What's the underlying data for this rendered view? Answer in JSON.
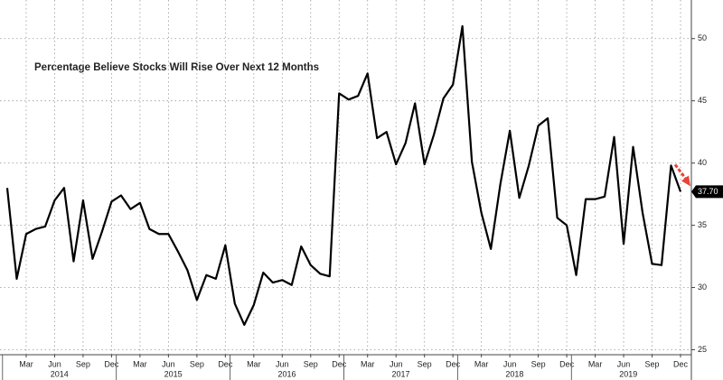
{
  "chart_data": {
    "type": "line",
    "annotation": "Percentage Believe Stocks Will Rise Over Next 12 Months",
    "x": [
      "2014-01",
      "2014-02",
      "2014-03",
      "2014-04",
      "2014-05",
      "2014-06",
      "2014-07",
      "2014-08",
      "2014-09",
      "2014-10",
      "2014-11",
      "2014-12",
      "2015-01",
      "2015-02",
      "2015-03",
      "2015-04",
      "2015-05",
      "2015-06",
      "2015-07",
      "2015-08",
      "2015-09",
      "2015-10",
      "2015-11",
      "2015-12",
      "2016-01",
      "2016-02",
      "2016-03",
      "2016-04",
      "2016-05",
      "2016-06",
      "2016-07",
      "2016-08",
      "2016-09",
      "2016-10",
      "2016-11",
      "2016-12",
      "2017-01",
      "2017-02",
      "2017-03",
      "2017-04",
      "2017-05",
      "2017-06",
      "2017-07",
      "2017-08",
      "2017-09",
      "2017-10",
      "2017-11",
      "2017-12",
      "2018-01",
      "2018-02",
      "2018-03",
      "2018-04",
      "2018-05",
      "2018-06",
      "2018-07",
      "2018-08",
      "2018-09",
      "2018-10",
      "2018-11",
      "2018-12",
      "2019-01",
      "2019-02",
      "2019-03",
      "2019-04",
      "2019-05",
      "2019-06",
      "2019-07",
      "2019-08",
      "2019-09",
      "2019-10",
      "2019-11",
      "2019-12"
    ],
    "series": [
      {
        "color": "#000000",
        "values": [
          38.0,
          30.7,
          34.3,
          34.7,
          34.9,
          37.0,
          38.0,
          32.1,
          37.0,
          32.3,
          34.5,
          36.9,
          37.4,
          36.3,
          36.8,
          34.7,
          34.3,
          34.3,
          32.9,
          31.4,
          29.0,
          31.0,
          30.7,
          33.4,
          28.7,
          27.0,
          28.6,
          31.2,
          30.4,
          30.6,
          30.2,
          33.3,
          31.8,
          31.1,
          30.9,
          45.6,
          45.1,
          45.4,
          47.2,
          42.0,
          42.5,
          39.9,
          41.6,
          44.8,
          39.9,
          42.3,
          45.2,
          46.3,
          51.0,
          40.1,
          36.0,
          33.1,
          38.3,
          42.6,
          37.2,
          39.8,
          43.0,
          43.6,
          35.6,
          35.0,
          31.0,
          37.1,
          37.1,
          37.3,
          42.1,
          33.5,
          41.3,
          36.0,
          31.9,
          31.8,
          39.8,
          37.7
        ]
      }
    ],
    "last_value_label": "37.70",
    "xlim": [
      "2013-12",
      "2020-01"
    ],
    "xticks": [
      {
        "value": "2014-03",
        "label": "Mar"
      },
      {
        "value": "2014-06",
        "label": "Jun"
      },
      {
        "value": "2014-09",
        "label": "Sep"
      },
      {
        "value": "2014-12",
        "label": "Dec"
      },
      {
        "value": "2015-03",
        "label": "Mar"
      },
      {
        "value": "2015-06",
        "label": "Jun"
      },
      {
        "value": "2015-09",
        "label": "Sep"
      },
      {
        "value": "2015-12",
        "label": "Dec"
      },
      {
        "value": "2016-03",
        "label": "Mar"
      },
      {
        "value": "2016-06",
        "label": "Jun"
      },
      {
        "value": "2016-09",
        "label": "Sep"
      },
      {
        "value": "2016-12",
        "label": "Dec"
      },
      {
        "value": "2017-03",
        "label": "Mar"
      },
      {
        "value": "2017-06",
        "label": "Jun"
      },
      {
        "value": "2017-09",
        "label": "Sep"
      },
      {
        "value": "2017-12",
        "label": "Dec"
      },
      {
        "value": "2018-03",
        "label": "Mar"
      },
      {
        "value": "2018-06",
        "label": "Jun"
      },
      {
        "value": "2018-09",
        "label": "Sep"
      },
      {
        "value": "2018-12",
        "label": "Dec"
      },
      {
        "value": "2019-03",
        "label": "Mar"
      },
      {
        "value": "2019-06",
        "label": "Jun"
      },
      {
        "value": "2019-09",
        "label": "Sep"
      },
      {
        "value": "2019-12",
        "label": "Dec"
      }
    ],
    "year_labels": [
      "2014",
      "2015",
      "2016",
      "2017",
      "2018",
      "2019"
    ],
    "ylim": [
      24.6,
      53.1
    ],
    "yticks": [
      25,
      30,
      35,
      40,
      45,
      50
    ],
    "grid": true
  }
}
